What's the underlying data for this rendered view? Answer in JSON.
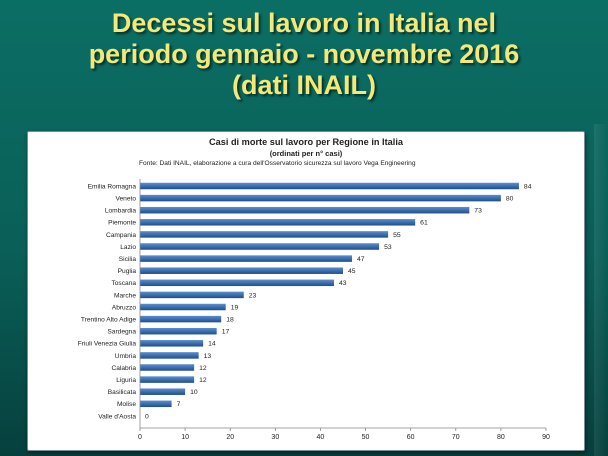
{
  "slide": {
    "title_lines": [
      "Decessi sul lavoro in Italia nel",
      "periodo gennaio - novembre 2016",
      "(dati INAIL)"
    ]
  },
  "chart_data": {
    "type": "bar",
    "orientation": "horizontal",
    "title": "Casi di morte sul lavoro per Regione in Italia",
    "subtitle": "(ordinati per n° casi)",
    "source": "Fonte: Dati INAIL, elaborazione a cura dell'Osservatorio sicurezza sul lavoro Vega Engineering",
    "categories": [
      "Emilia Romagna",
      "Veneto",
      "Lombardia",
      "Piemonte",
      "Campania",
      "Lazio",
      "Sicilia",
      "Puglia",
      "Toscana",
      "Marche",
      "Abruzzo",
      "Trentino Alto Adige",
      "Sardegna",
      "Friuli Venezia Giulia",
      "Umbria",
      "Calabria",
      "Liguria",
      "Basilicata",
      "Molise",
      "Valle d'Aosta"
    ],
    "values": [
      84,
      80,
      73,
      61,
      55,
      53,
      47,
      45,
      43,
      23,
      19,
      18,
      17,
      14,
      13,
      12,
      12,
      10,
      7,
      0
    ],
    "xlim": [
      0,
      90
    ],
    "xticks": [
      0,
      10,
      20,
      30,
      40,
      50,
      60,
      70,
      80,
      90
    ],
    "data_labels": true,
    "grid": false,
    "legend": "none",
    "colors": {
      "bar_dark": "#1f4e8c",
      "bar_light": "#5b8fd0",
      "axis": "#888888",
      "text": "#222222"
    }
  }
}
